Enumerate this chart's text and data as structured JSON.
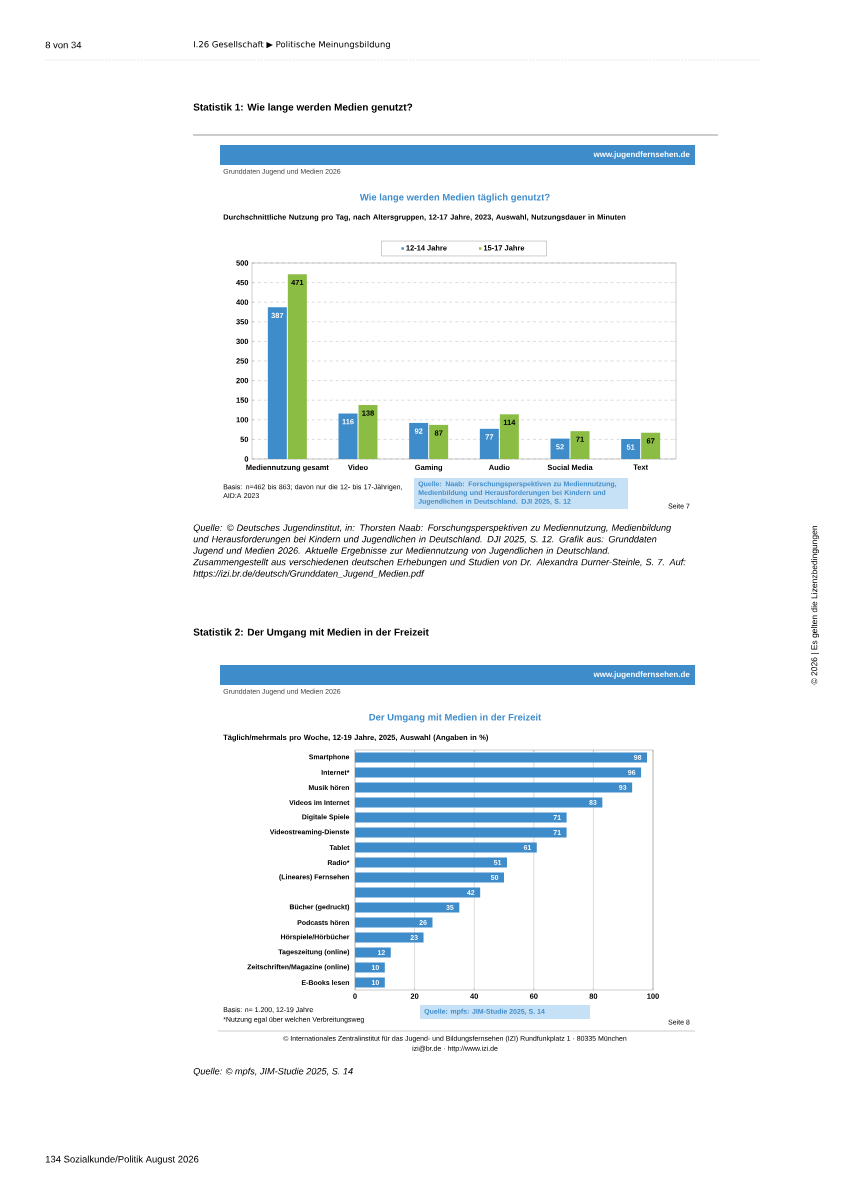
{
  "chart_data": [
    {
      "type": "bar",
      "title": "Wie lange werden Medien täglich genutzt?",
      "subtitle": "Durchschnittliche Nutzung pro Tag, nach Altersgruppen, 12-17 Jahre, 2023, Auswahl, Nutzungsdauer in Minuten",
      "categories": [
        "Mediennutzung gesamt",
        "Video",
        "Gaming",
        "Audio",
        "Social Media",
        "Text"
      ],
      "series": [
        {
          "name": "12-14 Jahre",
          "color": "#3f8ccb",
          "values": [
            387,
            116,
            92,
            77,
            52,
            51
          ]
        },
        {
          "name": "15-17 Jahre",
          "color": "#8bbd44",
          "values": [
            471,
            138,
            87,
            114,
            71,
            67
          ]
        }
      ],
      "ylim": [
        0,
        500
      ],
      "yticks": [
        0,
        50,
        100,
        150,
        200,
        250,
        300,
        350,
        400,
        450,
        500
      ],
      "grid": "y",
      "legend": "top",
      "data_labels": true,
      "annotations": [
        "8 von 34",
        "I.26   Gesellschaft  ▶  Politische Meinungsbildung",
        "Statistik 1: Wie lange werden Medien genutzt?",
        "www.jugendfernsehen.de",
        "Grunddaten Jugend und Medien 2026",
        "Basis: n=462 bis 863; davon nur die 12- bis 17-Jährigen, AID:A 2023",
        "Quelle: Naab: Forschungsperspektiven zu Mediennutzung, Medienbildung und Herausforderungen bei Kindern und Jugendlichen in Deutschland. DJI 2025, S. 12",
        "Seite 7",
        "Quelle: © Deutsches Jugendinstitut, in: Thorsten Naab: Forschungsperspektiven zu Mediennutzung, Medienbildung und Herausforderungen bei Kindern und Jugendlichen in Deutschland. DJI 2025, S. 12. Grafik aus: Grunddaten Jugend und Medien 2026. Aktuelle Ergebnisse zur Mediennutzung von Jugendlichen in Deutschland. Zusammengestellt aus verschiedenen deutschen Erhebungen und Studien von Dr. Alexandra Durner-Steinle, S. 7. Auf: https://izi.br.de/deutsch/Grunddaten_Jugend_Medien.pdf",
        "© 2026 | Es gelten die Lizenzbedingungen"
      ]
    },
    {
      "type": "bar",
      "orientation": "horizontal",
      "title": "Der Umgang mit Medien in der Freizeit",
      "subtitle": "Täglich/mehrmals pro Woche, 12-19 Jahre, 2025, Auswahl (Angaben in %)",
      "categories": [
        "Smartphone",
        "Internet*",
        "Musik hören",
        "Videos im Internet",
        "Digitale Spiele",
        "Videostreaming-Dienste",
        "Tablet",
        "Radio*",
        "(Lineares) Fernsehen",
        null,
        "Bücher (gedruckt)",
        "Podcasts hören",
        "Hörspiele/Hörbücher",
        "Tageszeitung (online)",
        "Zeitschriften/Magazine (online)",
        "E-Books lesen"
      ],
      "values": [
        98,
        96,
        93,
        83,
        71,
        71,
        61,
        51,
        50,
        42,
        35,
        26,
        23,
        12,
        10,
        10
      ],
      "color": "#3f8ccb",
      "xlim": [
        0,
        100
      ],
      "xticks": [
        0,
        20,
        40,
        60,
        80,
        100
      ],
      "grid": "x",
      "data_labels": true,
      "annotations": [
        "Statistik 2: Der Umgang mit Medien in der Freizeit",
        "www.jugendfernsehen.de",
        "Grunddaten Jugend und Medien 2026",
        "Basis: n= 1.200, 12-19 Jahre",
        "*Nutzung egal über welchen Verbreitungsweg",
        "Quelle: mpfs: JIM-Studie 2025, S. 14",
        "Seite 8",
        "© Internationales Zentralinstitut für das Jugend- und Bildungsfernsehen (IZI) Rundfunkplatz 1 · 80335 München",
        "izi@br.de · http://www.izi.de",
        "Quelle: © mpfs, JIM-Studie 2025, S. 14",
        "134 Sozialkunde/Politik August 2026"
      ]
    }
  ]
}
